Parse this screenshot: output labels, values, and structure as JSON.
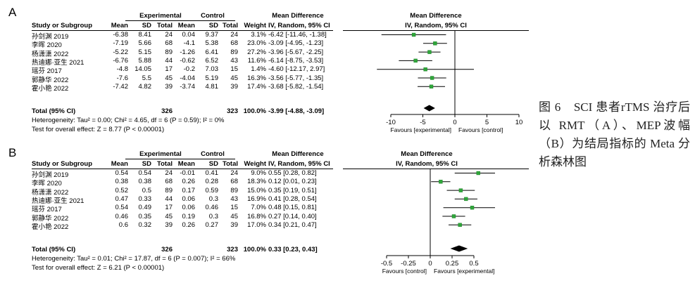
{
  "figure": {
    "caption": "图 6　SCI 患者rTMS 治疗后以 RMT（A）、MEP波幅（B）为结局指标的 Meta 分析森林图"
  },
  "panels": [
    {
      "label": "A",
      "headers": {
        "group_experimental": "Experimental",
        "group_control": "Control",
        "group_md": "Mean Difference",
        "plot_title": "Mean Difference",
        "study": "Study or Subgroup",
        "mean": "Mean",
        "sd": "SD",
        "total": "Total",
        "weight": "Weight",
        "md_sub": "IV, Random, 95% CI",
        "plot_sub": "IV, Random, 95% CI"
      },
      "studies": [
        {
          "name": "孙剑渊 2019",
          "e_mean": "-6.38",
          "e_sd": "8.41",
          "e_total": "24",
          "c_mean": "0.04",
          "c_sd": "9.37",
          "c_total": "24",
          "weight": "3.1%",
          "md": "-6.42 [-11.46, -1.38]"
        },
        {
          "name": "李晖 2020",
          "e_mean": "-7.19",
          "e_sd": "5.66",
          "e_total": "68",
          "c_mean": "-4.1",
          "c_sd": "5.38",
          "c_total": "68",
          "weight": "23.0%",
          "md": "-3.09 [-4.95, -1.23]"
        },
        {
          "name": "杨潇潇 2022",
          "e_mean": "-5.22",
          "e_sd": "5.15",
          "e_total": "89",
          "c_mean": "-1.26",
          "c_sd": "6.41",
          "c_total": "89",
          "weight": "27.2%",
          "md": "-3.96 [-5.67, -2.25]"
        },
        {
          "name": "热迪娜·亚生 2021",
          "e_mean": "-6.76",
          "e_sd": "5.88",
          "e_total": "44",
          "c_mean": "-0.62",
          "c_sd": "6.52",
          "c_total": "43",
          "weight": "11.6%",
          "md": "-6.14 [-8.75, -3.53]"
        },
        {
          "name": "瑶芬 2017",
          "e_mean": "-4.8",
          "e_sd": "14.05",
          "e_total": "17",
          "c_mean": "-0.2",
          "c_sd": "7.03",
          "c_total": "15",
          "weight": "1.4%",
          "md": "-4.60 [-12.17, 2.97]"
        },
        {
          "name": "郭静华 2022",
          "e_mean": "-7.6",
          "e_sd": "5.5",
          "e_total": "45",
          "c_mean": "-4.04",
          "c_sd": "5.19",
          "c_total": "45",
          "weight": "16.3%",
          "md": "-3.56 [-5.77, -1.35]"
        },
        {
          "name": "霍小艳 2022",
          "e_mean": "-7.42",
          "e_sd": "4.82",
          "e_total": "39",
          "c_mean": "-3.74",
          "c_sd": "4.81",
          "c_total": "39",
          "weight": "17.4%",
          "md": "-3.68 [-5.82, -1.54]"
        }
      ],
      "total": {
        "name": "Total (95% CI)",
        "e_total": "326",
        "c_total": "323",
        "weight": "100.0%",
        "md": "-3.99 [-4.88, -3.09]"
      },
      "heterogeneity": "Heterogeneity: Tau² = 0.00; Chi² = 4.65, df = 6 (P = 0.59); I² = 0%",
      "overall": "Test for overall effect: Z = 8.77 (P < 0.00001)",
      "axis": {
        "ticks": [
          "-10",
          "-5",
          "0",
          "5",
          "10"
        ],
        "left_label": "Favours [experimental]",
        "right_label": "Favours [control]"
      },
      "forest": {
        "axis_min": -10,
        "axis_max": 10,
        "studies": [
          {
            "est": -6.42,
            "lo": -11.46,
            "hi": -1.38
          },
          {
            "est": -3.09,
            "lo": -4.95,
            "hi": -1.23
          },
          {
            "est": -3.96,
            "lo": -5.67,
            "hi": -2.25
          },
          {
            "est": -6.14,
            "lo": -8.75,
            "hi": -3.53
          },
          {
            "est": -4.6,
            "lo": -12.17,
            "hi": 2.97
          },
          {
            "est": -3.56,
            "lo": -5.77,
            "hi": -1.35
          },
          {
            "est": -3.68,
            "lo": -5.82,
            "hi": -1.54
          }
        ],
        "pooled": {
          "est": -3.99,
          "lo": -4.88,
          "hi": -3.09
        }
      }
    },
    {
      "label": "B",
      "headers": {
        "group_experimental": "Experimental",
        "group_control": "Control",
        "group_md": "Mean Difference",
        "plot_title": "Mean Difference",
        "study": "Study or Subgroup",
        "mean": "Mean",
        "sd": "SD",
        "total": "Total",
        "weight": "Weight",
        "md_sub": "IV, Random, 95% CI",
        "plot_sub": "IV, Random, 95% CI"
      },
      "studies": [
        {
          "name": "孙剑渊 2019",
          "e_mean": "0.54",
          "e_sd": "0.54",
          "e_total": "24",
          "c_mean": "-0.01",
          "c_sd": "0.41",
          "c_total": "24",
          "weight": "9.0%",
          "md": "0.55 [0.28, 0.82]"
        },
        {
          "name": "李晖 2020",
          "e_mean": "0.38",
          "e_sd": "0.38",
          "e_total": "68",
          "c_mean": "0.26",
          "c_sd": "0.28",
          "c_total": "68",
          "weight": "18.3%",
          "md": "0.12 [0.01, 0.23]"
        },
        {
          "name": "杨潇潇 2022",
          "e_mean": "0.52",
          "e_sd": "0.5",
          "e_total": "89",
          "c_mean": "0.17",
          "c_sd": "0.59",
          "c_total": "89",
          "weight": "15.0%",
          "md": "0.35 [0.19, 0.51]"
        },
        {
          "name": "热迪娜·亚生 2021",
          "e_mean": "0.47",
          "e_sd": "0.33",
          "e_total": "44",
          "c_mean": "0.06",
          "c_sd": "0.3",
          "c_total": "43",
          "weight": "16.9%",
          "md": "0.41 [0.28, 0.54]"
        },
        {
          "name": "瑶芬 2017",
          "e_mean": "0.54",
          "e_sd": "0.49",
          "e_total": "17",
          "c_mean": "0.06",
          "c_sd": "0.46",
          "c_total": "15",
          "weight": "7.0%",
          "md": "0.48 [0.15, 0.81]"
        },
        {
          "name": "郭静华 2022",
          "e_mean": "0.46",
          "e_sd": "0.35",
          "e_total": "45",
          "c_mean": "0.19",
          "c_sd": "0.3",
          "c_total": "45",
          "weight": "16.8%",
          "md": "0.27 [0.14, 0.40]"
        },
        {
          "name": "霍小艳 2022",
          "e_mean": "0.6",
          "e_sd": "0.32",
          "e_total": "39",
          "c_mean": "0.26",
          "c_sd": "0.27",
          "c_total": "39",
          "weight": "17.0%",
          "md": "0.34 [0.21, 0.47]"
        }
      ],
      "total": {
        "name": "Total (95% CI)",
        "e_total": "326",
        "c_total": "323",
        "weight": "100.0%",
        "md": "0.33 [0.23, 0.43]"
      },
      "heterogeneity": "Heterogeneity: Tau² = 0.01; Chi² = 17.87, df = 6 (P = 0.007); I² = 66%",
      "overall": "Test for overall effect: Z = 6.21 (P < 0.00001)",
      "axis": {
        "ticks": [
          "-0.5",
          "-0.25",
          "0",
          "0.25",
          "0.5"
        ],
        "left_label": "Favours [control]",
        "right_label": "Favours [experimental]"
      },
      "forest": {
        "axis_min": -0.5,
        "axis_max": 0.5,
        "studies": [
          {
            "est": 0.55,
            "lo": 0.28,
            "hi": 0.82
          },
          {
            "est": 0.12,
            "lo": 0.01,
            "hi": 0.23
          },
          {
            "est": 0.35,
            "lo": 0.19,
            "hi": 0.51
          },
          {
            "est": 0.41,
            "lo": 0.28,
            "hi": 0.54
          },
          {
            "est": 0.48,
            "lo": 0.15,
            "hi": 0.81
          },
          {
            "est": 0.27,
            "lo": 0.14,
            "hi": 0.4
          },
          {
            "est": 0.34,
            "lo": 0.21,
            "hi": 0.47
          }
        ],
        "pooled": {
          "est": 0.33,
          "lo": 0.23,
          "hi": 0.43
        }
      }
    }
  ],
  "style": {
    "marker_color": "#2fa63a",
    "line_color": "#000000"
  }
}
